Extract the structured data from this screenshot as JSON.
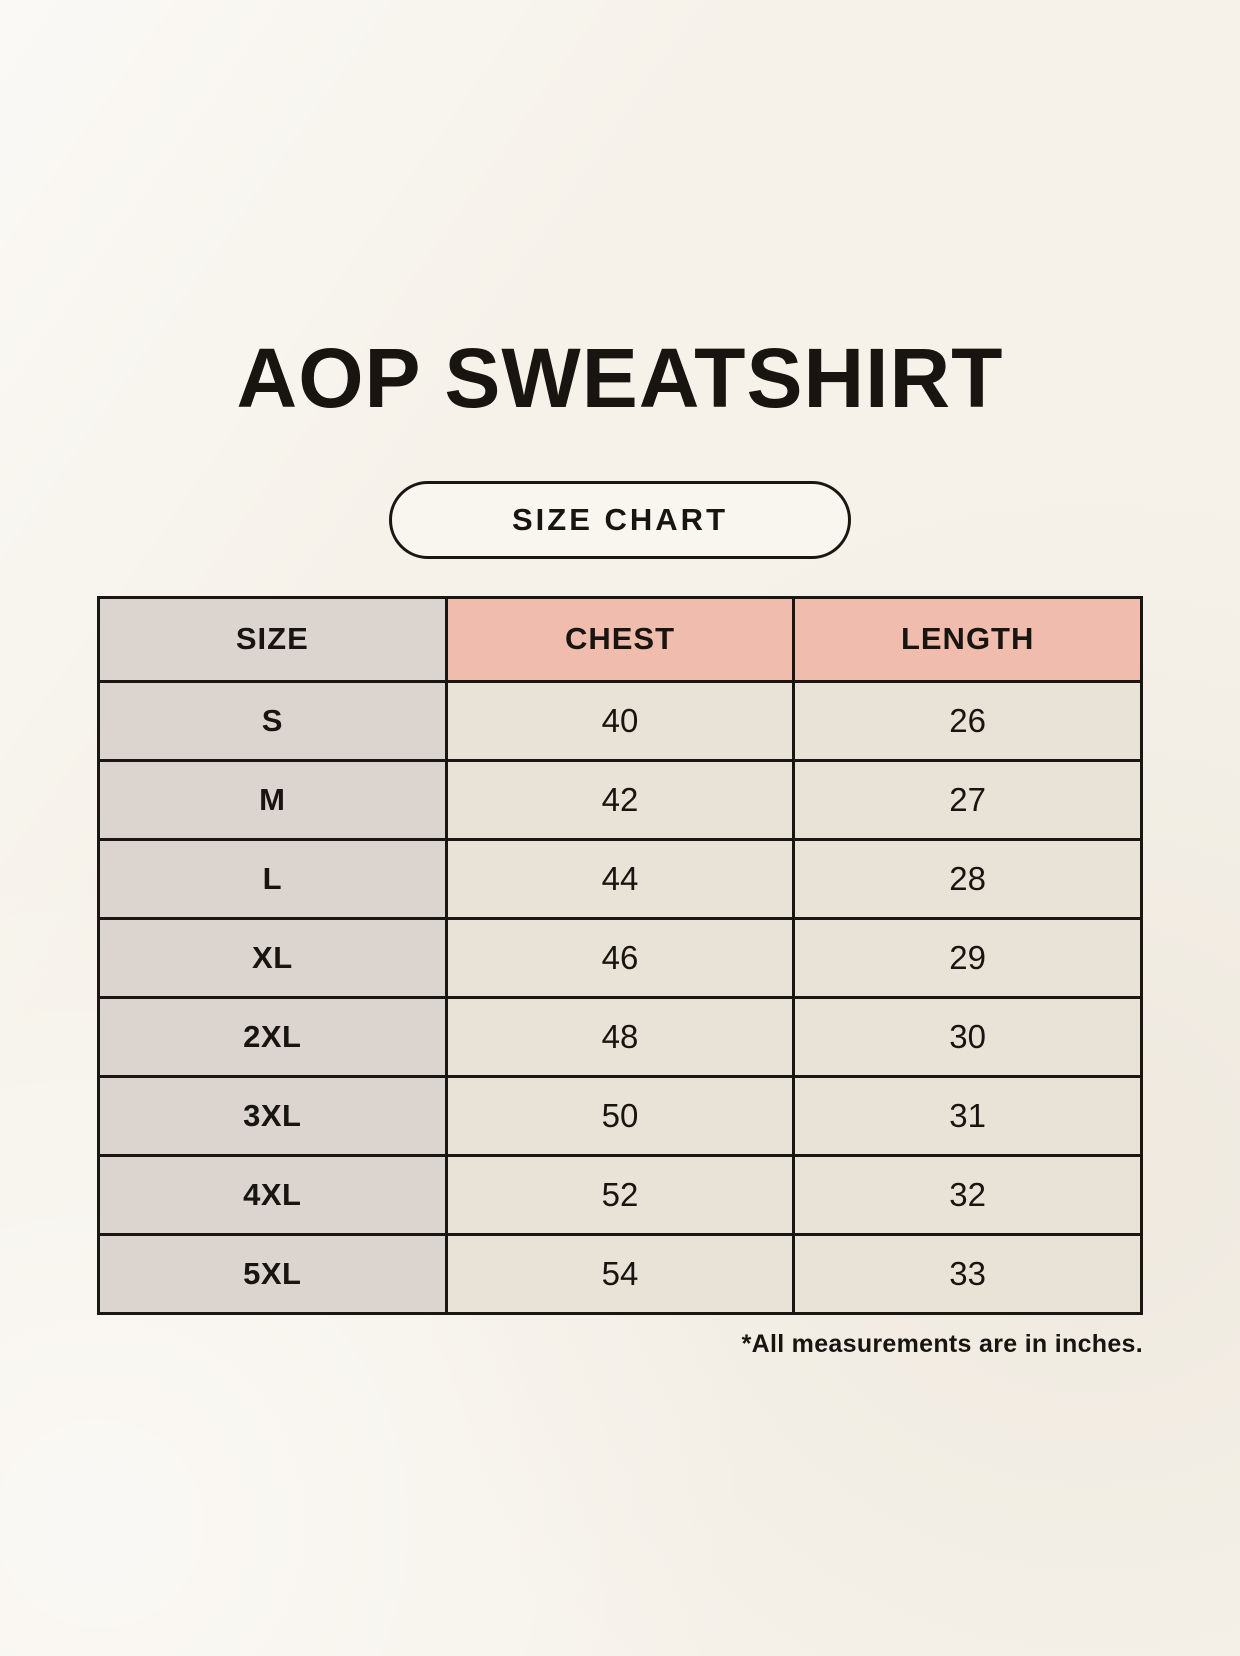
{
  "title": "AOP SWEATSHIRT",
  "badge_label": "SIZE CHART",
  "footnote": "*All measurements are in inches.",
  "colors": {
    "background": "#f6f2ea",
    "border": "#1a1712",
    "size_column_bg": "#dcd4cf",
    "measure_header_bg": "#f0bcad",
    "data_cell_bg": "#e9e2d7",
    "text": "#181511"
  },
  "chart_data": {
    "type": "table",
    "title": "AOP SWEATSHIRT — SIZE CHART",
    "columns": [
      "SIZE",
      "CHEST",
      "LENGTH"
    ],
    "units": "inches",
    "rows": [
      [
        "S",
        "40",
        "26"
      ],
      [
        "M",
        "42",
        "27"
      ],
      [
        "L",
        "44",
        "28"
      ],
      [
        "XL",
        "46",
        "29"
      ],
      [
        "2XL",
        "48",
        "30"
      ],
      [
        "3XL",
        "50",
        "31"
      ],
      [
        "4XL",
        "52",
        "32"
      ],
      [
        "5XL",
        "54",
        "33"
      ]
    ]
  }
}
